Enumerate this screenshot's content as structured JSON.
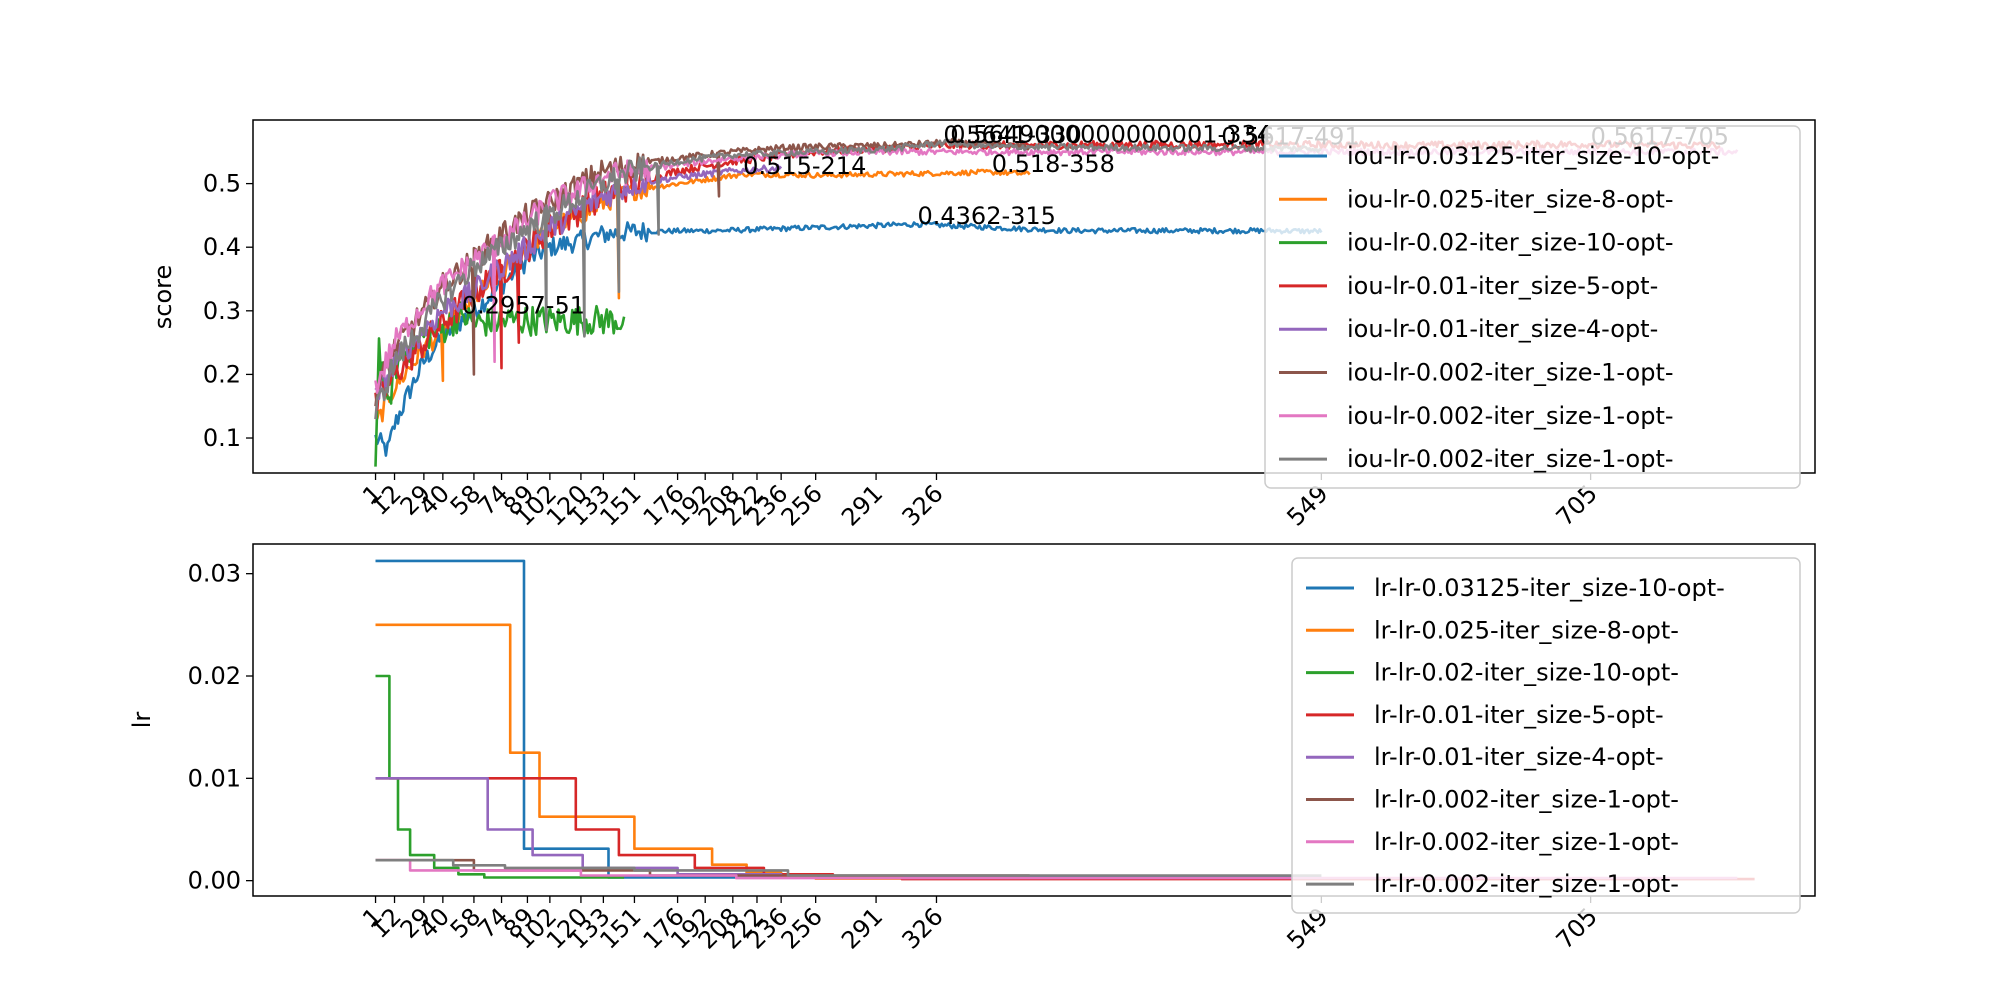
{
  "chart_data": [
    {
      "type": "line",
      "ylabel": "score",
      "ylim": [
        0.045,
        0.6
      ],
      "xlim": [
        -70,
        835
      ],
      "yticks": [
        0.1,
        0.2,
        0.3,
        0.4,
        0.5
      ],
      "ytick_labels": [
        "0.1",
        "0.2",
        "0.3",
        "0.4",
        "0.5"
      ],
      "xticks": [
        1,
        12,
        29,
        40,
        58,
        74,
        89,
        102,
        120,
        133,
        151,
        176,
        192,
        208,
        222,
        236,
        256,
        291,
        326,
        549,
        705
      ],
      "xtick_labels": [
        "1",
        "12",
        "29",
        "40",
        "58",
        "74",
        "89",
        "102",
        "120",
        "133",
        "151",
        "176",
        "192",
        "208",
        "222",
        "236",
        "256",
        "291",
        "326",
        "549",
        "705"
      ],
      "legend_placement": "upper right",
      "series": [
        {
          "name": "iou-lr-0.03125-iter_size-10-opt-",
          "color": "#1f77b4",
          "noise": 0.004,
          "points": [
            [
              1,
              0.1
            ],
            [
              8,
              0.08
            ],
            [
              12,
              0.12
            ],
            [
              20,
              0.17
            ],
            [
              29,
              0.22
            ],
            [
              40,
              0.26
            ],
            [
              58,
              0.3
            ],
            [
              74,
              0.34
            ],
            [
              89,
              0.38
            ],
            [
              102,
              0.4
            ],
            [
              120,
              0.41
            ],
            [
              133,
              0.42
            ],
            [
              151,
              0.425
            ],
            [
              200,
              0.426
            ],
            [
              315,
              0.4362
            ],
            [
              400,
              0.426
            ],
            [
              520,
              0.426
            ],
            [
              549,
              0.425
            ]
          ]
        },
        {
          "name": "iou-lr-0.025-iter_size-8-opt-",
          "color": "#ff7f0e",
          "noise": 0.004,
          "points": [
            [
              1,
              0.12
            ],
            [
              12,
              0.18
            ],
            [
              29,
              0.24
            ],
            [
              40,
              0.27
            ],
            [
              58,
              0.32
            ],
            [
              74,
              0.36
            ],
            [
              89,
              0.4
            ],
            [
              102,
              0.43
            ],
            [
              120,
              0.45
            ],
            [
              133,
              0.47
            ],
            [
              151,
              0.49
            ],
            [
              176,
              0.5
            ],
            [
              214,
              0.515
            ],
            [
              260,
              0.513
            ],
            [
              358,
              0.518
            ],
            [
              380,
              0.515
            ]
          ]
        },
        {
          "name": "iou-lr-0.02-iter_size-10-opt-",
          "color": "#2ca02c",
          "noise": 0.006,
          "points": [
            [
              1,
              0.07
            ],
            [
              3,
              0.25
            ],
            [
              8,
              0.14
            ],
            [
              12,
              0.21
            ],
            [
              20,
              0.24
            ],
            [
              29,
              0.26
            ],
            [
              40,
              0.27
            ],
            [
              51,
              0.2957
            ],
            [
              58,
              0.28
            ],
            [
              80,
              0.285
            ],
            [
              100,
              0.285
            ],
            [
              145,
              0.285
            ]
          ]
        },
        {
          "name": "iou-lr-0.01-iter_size-5-opt-",
          "color": "#d62728",
          "noise": 0.006,
          "points": [
            [
              1,
              0.15
            ],
            [
              12,
              0.2
            ],
            [
              29,
              0.25
            ],
            [
              40,
              0.28
            ],
            [
              58,
              0.33
            ],
            [
              74,
              0.36
            ],
            [
              89,
              0.4
            ],
            [
              102,
              0.43
            ],
            [
              120,
              0.46
            ],
            [
              133,
              0.48
            ],
            [
              151,
              0.5
            ],
            [
              176,
              0.52
            ],
            [
              208,
              0.535
            ],
            [
              256,
              0.55
            ],
            [
              330,
              0.56
            ],
            [
              491,
              0.5617
            ],
            [
              600,
              0.56
            ],
            [
              705,
              0.5617
            ],
            [
              780,
              0.56
            ]
          ]
        },
        {
          "name": "iou-lr-0.01-iter_size-4-opt-",
          "color": "#9467bd",
          "noise": 0.005,
          "points": [
            [
              1,
              0.16
            ],
            [
              12,
              0.22
            ],
            [
              29,
              0.27
            ],
            [
              40,
              0.3
            ],
            [
              58,
              0.33
            ],
            [
              74,
              0.37
            ],
            [
              89,
              0.4
            ],
            [
              102,
              0.43
            ],
            [
              120,
              0.46
            ],
            [
              133,
              0.48
            ],
            [
              151,
              0.5
            ],
            [
              176,
              0.51
            ],
            [
              208,
              0.52
            ],
            [
              236,
              0.525
            ]
          ]
        },
        {
          "name": "iou-lr-0.002-iter_size-1-opt-",
          "color": "#8c564b",
          "noise": 0.005,
          "points": [
            [
              1,
              0.17
            ],
            [
              12,
              0.24
            ],
            [
              29,
              0.3
            ],
            [
              40,
              0.34
            ],
            [
              58,
              0.38
            ],
            [
              74,
              0.42
            ],
            [
              89,
              0.45
            ],
            [
              102,
              0.47
            ],
            [
              120,
              0.5
            ],
            [
              133,
              0.52
            ],
            [
              151,
              0.53
            ],
            [
              176,
              0.54
            ],
            [
              208,
              0.55
            ],
            [
              236,
              0.556
            ],
            [
              256,
              0.558
            ],
            [
              300,
              0.56
            ],
            [
              334,
              0.5649
            ],
            [
              360,
              0.56
            ],
            [
              380,
              0.558
            ]
          ]
        },
        {
          "name": "iou-lr-0.002-iter_size-1-opt-",
          "color": "#e377c2",
          "noise": 0.005,
          "points": [
            [
              1,
              0.18
            ],
            [
              12,
              0.25
            ],
            [
              29,
              0.31
            ],
            [
              40,
              0.34
            ],
            [
              58,
              0.38
            ],
            [
              74,
              0.41
            ],
            [
              89,
              0.44
            ],
            [
              102,
              0.47
            ],
            [
              120,
              0.49
            ],
            [
              133,
              0.51
            ],
            [
              151,
              0.52
            ],
            [
              176,
              0.53
            ],
            [
              208,
              0.54
            ],
            [
              256,
              0.548
            ],
            [
              300,
              0.55
            ],
            [
              400,
              0.55
            ],
            [
              500,
              0.55
            ],
            [
              600,
              0.55
            ],
            [
              700,
              0.55
            ],
            [
              790,
              0.55
            ]
          ]
        },
        {
          "name": "iou-lr-0.002-iter_size-1-opt-",
          "color": "#7f7f7f",
          "noise": 0.005,
          "points": [
            [
              1,
              0.14
            ],
            [
              12,
              0.22
            ],
            [
              29,
              0.28
            ],
            [
              40,
              0.32
            ],
            [
              58,
              0.37
            ],
            [
              74,
              0.4
            ],
            [
              89,
              0.43
            ],
            [
              102,
              0.45
            ],
            [
              120,
              0.48
            ],
            [
              133,
              0.5
            ],
            [
              151,
              0.52
            ],
            [
              176,
              0.535
            ],
            [
              208,
              0.545
            ],
            [
              256,
              0.55
            ],
            [
              300,
              0.555
            ],
            [
              330,
              0.5641
            ],
            [
              360,
              0.558
            ],
            [
              480,
              0.556
            ],
            [
              549,
              0.555
            ]
          ]
        }
      ],
      "dips": [
        {
          "series": 1,
          "x": 40,
          "y": 0.19
        },
        {
          "series": 3,
          "x": 74,
          "y": 0.21
        },
        {
          "series": 3,
          "x": 84,
          "y": 0.25
        },
        {
          "series": 5,
          "x": 58,
          "y": 0.2
        },
        {
          "series": 6,
          "x": 70,
          "y": 0.22
        },
        {
          "series": 7,
          "x": 100,
          "y": 0.27
        },
        {
          "series": 7,
          "x": 122,
          "y": 0.26
        },
        {
          "series": 7,
          "x": 142,
          "y": 0.33
        },
        {
          "series": 1,
          "x": 142,
          "y": 0.32
        },
        {
          "series": 7,
          "x": 165,
          "y": 0.42
        },
        {
          "series": 5,
          "x": 200,
          "y": 0.48
        }
      ],
      "annotations": [
        {
          "text": "0.2957-51",
          "x": 51,
          "y": 0.2957
        },
        {
          "text": "0.4362-315",
          "x": 315,
          "y": 0.4362
        },
        {
          "text": "0.515-214",
          "x": 214,
          "y": 0.515
        },
        {
          "text": "0.518-358",
          "x": 358,
          "y": 0.518
        },
        {
          "text": "0.5641-330",
          "x": 330,
          "y": 0.5641
        },
        {
          "text": "0.5649000000000001-334",
          "x": 334,
          "y": 0.5649
        },
        {
          "text": "0.5617-491",
          "x": 491,
          "y": 0.5617
        },
        {
          "text": "0.5617-705",
          "x": 705,
          "y": 0.5617
        }
      ]
    },
    {
      "type": "line",
      "ylabel": "lr",
      "ylim": [
        -0.0015,
        0.0329
      ],
      "xlim": [
        -70,
        835
      ],
      "yticks": [
        0.0,
        0.01,
        0.02,
        0.03
      ],
      "ytick_labels": [
        "0.00",
        "0.01",
        "0.02",
        "0.03"
      ],
      "xticks": [
        1,
        12,
        29,
        40,
        58,
        74,
        89,
        102,
        120,
        133,
        151,
        176,
        192,
        208,
        222,
        236,
        256,
        291,
        326,
        549,
        705
      ],
      "xtick_labels": [
        "1",
        "12",
        "29",
        "40",
        "58",
        "74",
        "89",
        "102",
        "120",
        "133",
        "151",
        "176",
        "192",
        "208",
        "222",
        "236",
        "256",
        "291",
        "326",
        "549",
        "705"
      ],
      "legend_placement": "upper right",
      "series": [
        {
          "name": "lr-lr-0.03125-iter_size-10-opt-",
          "color": "#1f77b4",
          "steps": [
            [
              1,
              0.03125
            ],
            [
              87,
              0.003125
            ],
            [
              136,
              0.0003125
            ],
            [
              549,
              0.0003125
            ]
          ]
        },
        {
          "name": "lr-lr-0.025-iter_size-8-opt-",
          "color": "#ff7f0e",
          "steps": [
            [
              1,
              0.025
            ],
            [
              79,
              0.0125
            ],
            [
              96,
              0.00625
            ],
            [
              151,
              0.003125
            ],
            [
              196,
              0.0015625
            ],
            [
              216,
              0.00078
            ],
            [
              236,
              0.00039
            ],
            [
              256,
              0.0002
            ],
            [
              380,
              0.0002
            ]
          ]
        },
        {
          "name": "lr-lr-0.02-iter_size-10-opt-",
          "color": "#2ca02c",
          "steps": [
            [
              1,
              0.02
            ],
            [
              9,
              0.01
            ],
            [
              14,
              0.005
            ],
            [
              21,
              0.0025
            ],
            [
              35,
              0.00125
            ],
            [
              49,
              0.000625
            ],
            [
              64,
              0.0003125
            ],
            [
              145,
              0.0003125
            ]
          ]
        },
        {
          "name": "lr-lr-0.01-iter_size-5-opt-",
          "color": "#d62728",
          "steps": [
            [
              1,
              0.01
            ],
            [
              117,
              0.005
            ],
            [
              142,
              0.0025
            ],
            [
              186,
              0.00125
            ],
            [
              226,
              0.000625
            ],
            [
              266,
              0.0003125
            ],
            [
              306,
              0.00015
            ],
            [
              800,
              0.00015
            ]
          ]
        },
        {
          "name": "lr-lr-0.01-iter_size-4-opt-",
          "color": "#9467bd",
          "steps": [
            [
              1,
              0.01
            ],
            [
              66,
              0.005
            ],
            [
              92,
              0.0025
            ],
            [
              121,
              0.00125
            ],
            [
              176,
              0.000625
            ],
            [
              236,
              0.0003125
            ]
          ]
        },
        {
          "name": "lr-lr-0.002-iter_size-1-opt-",
          "color": "#8c564b",
          "steps": [
            [
              1,
              0.002
            ],
            [
              58,
              0.001
            ],
            [
              160,
              0.0005
            ],
            [
              380,
              0.0005
            ]
          ]
        },
        {
          "name": "lr-lr-0.002-iter_size-1-opt-",
          "color": "#e377c2",
          "steps": [
            [
              1,
              0.002
            ],
            [
              21,
              0.001
            ],
            [
              120,
              0.0005
            ],
            [
              210,
              0.00025
            ],
            [
              790,
              0.00025
            ]
          ]
        },
        {
          "name": "lr-lr-0.002-iter_size-1-opt-",
          "color": "#7f7f7f",
          "steps": [
            [
              1,
              0.002
            ],
            [
              46,
              0.0015
            ],
            [
              76,
              0.00125
            ],
            [
              151,
              0.001
            ],
            [
              240,
              0.0005
            ],
            [
              549,
              0.0005
            ]
          ]
        }
      ]
    }
  ]
}
